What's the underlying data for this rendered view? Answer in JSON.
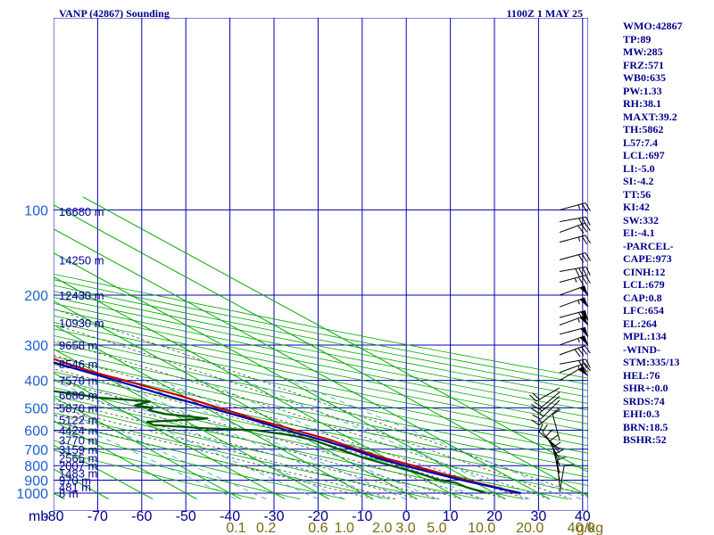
{
  "title": "VANP (42867) Sounding",
  "valid_time": "1100Z  1 MAY 25",
  "chart_data": {
    "type": "line",
    "pressure_levels": [
      100,
      200,
      300,
      400,
      500,
      600,
      700,
      800,
      900,
      1000
    ],
    "pressure_range": [
      100,
      1050
    ],
    "temperature_ticks": [
      -80,
      -70,
      -60,
      -50,
      -40,
      -30,
      -20,
      -10,
      0,
      10,
      20,
      30,
      40
    ],
    "temperature_range": [
      -80,
      50
    ],
    "pressure_axis_unit": "mb",
    "mixing_ratio_ticks": [
      0.1,
      0.2,
      0.6,
      1.0,
      2.0,
      3.0,
      5.0,
      10.0,
      20.0,
      40.0
    ],
    "mixing_ratio_unit": "g/kg",
    "heights": [
      {
        "p": 101,
        "label": "16680 m"
      },
      {
        "p": 150,
        "label": "14250 m"
      },
      {
        "p": 200,
        "label": "12430 m"
      },
      {
        "p": 250,
        "label": "10930 m"
      },
      {
        "p": 300,
        "label": "9658 m"
      },
      {
        "p": 350,
        "label": "8546 m"
      },
      {
        "p": 400,
        "label": "7570 m"
      },
      {
        "p": 450,
        "label": "6680 m"
      },
      {
        "p": 500,
        "label": "5870 m"
      },
      {
        "p": 550,
        "label": "5122 m"
      },
      {
        "p": 600,
        "label": "4424 m"
      },
      {
        "p": 650,
        "label": "3770 m"
      },
      {
        "p": 700,
        "label": "3159 m"
      },
      {
        "p": 750,
        "label": "2565 m"
      },
      {
        "p": 800,
        "label": "2007 m"
      },
      {
        "p": 850,
        "label": "1483 m"
      },
      {
        "p": 900,
        "label": "970 m"
      },
      {
        "p": 950,
        "label": "481 m"
      },
      {
        "p": 1000,
        "label": "8 m"
      }
    ],
    "grid": true,
    "series": [
      {
        "key": "temperature",
        "color": "#c00000",
        "points": [
          [
            1000,
            25
          ],
          [
            950,
            22.5
          ],
          [
            900,
            19
          ],
          [
            850,
            16
          ],
          [
            800,
            13
          ],
          [
            750,
            9.5
          ],
          [
            700,
            7
          ],
          [
            650,
            5
          ],
          [
            600,
            1
          ],
          [
            575,
            -1
          ],
          [
            550,
            -3.5
          ],
          [
            525,
            -5
          ],
          [
            500,
            -7
          ],
          [
            475,
            -9
          ],
          [
            450,
            -11
          ],
          [
            425,
            -14
          ],
          [
            400,
            -17
          ],
          [
            375,
            -20.5
          ],
          [
            350,
            -23
          ],
          [
            325,
            -25
          ],
          [
            300,
            -28.5
          ],
          [
            275,
            -31
          ],
          [
            250,
            -36
          ],
          [
            225,
            -41
          ],
          [
            200,
            -46
          ],
          [
            180,
            -50.5
          ],
          [
            160,
            -56
          ],
          [
            140,
            -61
          ],
          [
            120,
            -68
          ],
          [
            100,
            -76
          ]
        ]
      },
      {
        "key": "dewpoint",
        "color": "#005500",
        "points": [
          [
            1000,
            18
          ],
          [
            950,
            16
          ],
          [
            920,
            15.5
          ],
          [
            900,
            13
          ],
          [
            850,
            11
          ],
          [
            800,
            8
          ],
          [
            750,
            5
          ],
          [
            700,
            3
          ],
          [
            650,
            1
          ],
          [
            625,
            -2
          ],
          [
            600,
            -8
          ],
          [
            590,
            -19
          ],
          [
            575,
            -29
          ],
          [
            560,
            -29
          ],
          [
            550,
            -18
          ],
          [
            545,
            -14
          ],
          [
            525,
            -22
          ],
          [
            510,
            -24
          ],
          [
            500,
            -22
          ],
          [
            490,
            -25
          ],
          [
            475,
            -20
          ],
          [
            460,
            -30
          ],
          [
            420,
            -43
          ],
          [
            400,
            -41
          ],
          [
            380,
            -40
          ],
          [
            360,
            -47
          ],
          [
            350,
            -38
          ],
          [
            345,
            -48
          ],
          [
            330,
            -54
          ],
          [
            300,
            -58
          ],
          [
            270,
            -63
          ],
          [
            250,
            -67
          ],
          [
            200,
            -74
          ],
          [
            170,
            -79
          ]
        ]
      },
      {
        "key": "parcel",
        "color": "#0000b0",
        "points": [
          [
            1000,
            26
          ],
          [
            950,
            22
          ],
          [
            900,
            18
          ],
          [
            850,
            14.5
          ],
          [
            800,
            11
          ],
          [
            750,
            8
          ],
          [
            700,
            6
          ],
          [
            650,
            3
          ],
          [
            600,
            -1
          ],
          [
            550,
            -4.5
          ],
          [
            500,
            -9
          ],
          [
            450,
            -14
          ],
          [
            400,
            -19
          ],
          [
            350,
            -25
          ],
          [
            300,
            -32
          ],
          [
            250,
            -40
          ],
          [
            200,
            -49
          ],
          [
            150,
            -61
          ],
          [
            120,
            -70
          ],
          [
            100,
            -80
          ]
        ]
      }
    ],
    "wind_barbs": [
      {
        "p": 100,
        "dir": 75,
        "spd": 25
      },
      {
        "p": 110,
        "dir": 80,
        "spd": 30
      },
      {
        "p": 120,
        "dir": 70,
        "spd": 30
      },
      {
        "p": 130,
        "dir": 75,
        "spd": 25
      },
      {
        "p": 150,
        "dir": 75,
        "spd": 30
      },
      {
        "p": 165,
        "dir": 80,
        "spd": 40
      },
      {
        "p": 180,
        "dir": 75,
        "spd": 35
      },
      {
        "p": 200,
        "dir": 70,
        "spd": 50
      },
      {
        "p": 220,
        "dir": 70,
        "spd": 55
      },
      {
        "p": 240,
        "dir": 75,
        "spd": 60
      },
      {
        "p": 255,
        "dir": 70,
        "spd": 55
      },
      {
        "p": 275,
        "dir": 75,
        "spd": 50
      },
      {
        "p": 300,
        "dir": 70,
        "spd": 55
      },
      {
        "p": 325,
        "dir": 70,
        "spd": 40
      },
      {
        "p": 350,
        "dir": 80,
        "spd": 30
      },
      {
        "p": 375,
        "dir": 70,
        "spd": 25
      },
      {
        "p": 400,
        "dir": 60,
        "spd": 50
      },
      {
        "p": 425,
        "dir": 240,
        "spd": 20
      },
      {
        "p": 440,
        "dir": 230,
        "spd": 20
      },
      {
        "p": 455,
        "dir": 230,
        "spd": 15
      },
      {
        "p": 470,
        "dir": 225,
        "spd": 15
      },
      {
        "p": 500,
        "dir": 230,
        "spd": 15
      },
      {
        "p": 650,
        "dir": 345,
        "spd": 10
      },
      {
        "p": 700,
        "dir": 310,
        "spd": 10
      },
      {
        "p": 720,
        "dir": 320,
        "spd": 10
      },
      {
        "p": 760,
        "dir": 330,
        "spd": 10
      },
      {
        "p": 800,
        "dir": 340,
        "spd": 10
      },
      {
        "p": 850,
        "dir": 345,
        "spd": 10
      },
      {
        "p": 900,
        "dir": 350,
        "spd": 10
      },
      {
        "p": 950,
        "dir": 355,
        "spd": 10
      },
      {
        "p": 990,
        "dir": 10,
        "spd": 10
      }
    ]
  },
  "indices": [
    "WMO:42867",
    "TP:89",
    "MW:285",
    "FRZ:571",
    "WB0:635",
    "PW:1.33",
    "RH:38.1",
    "MAXT:39.2",
    "TH:5862",
    "L57:7.4",
    "LCL:697",
    "LI:-5.0",
    "SI:-4.2",
    "TT:56",
    "KI:42",
    "SW:332",
    "EI:-4.1",
    "-PARCEL-",
    "CAPE:973",
    "CINH:12",
    "LCL:679",
    "CAP:0.8",
    "LFC:654",
    "EL:264",
    "MPL:134",
    "-WIND-",
    "STM:335/13",
    "HEL:76",
    "SHR+:0.0",
    "SRDS:74",
    "EHI:0.3",
    "BRN:18.5",
    "BSHR:52"
  ],
  "colors": {
    "grid": "#0000b0",
    "dry_adiabat": "#00aa00",
    "moist_adiabat": "#444444",
    "mixing_ratio": "#3399cc",
    "temperature": "#c00000",
    "dewpoint": "#005500",
    "parcel": "#0000b0",
    "title": "#00008b",
    "axis_label": "#1f5fd0",
    "mixing_label": "#7a6a10"
  }
}
